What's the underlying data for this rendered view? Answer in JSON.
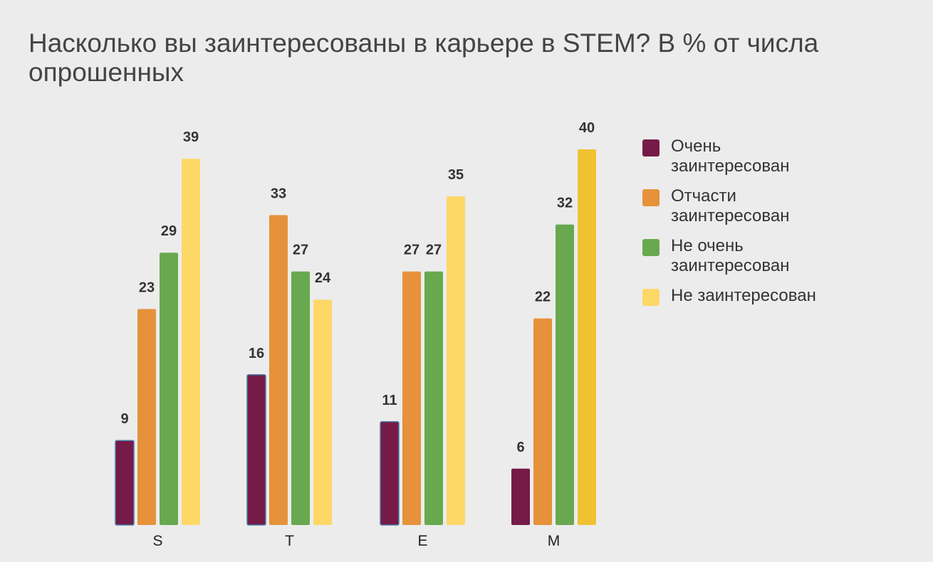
{
  "chart_data": {
    "type": "bar",
    "title": "Насколько вы заинтересованы в карьере в STEM? В % от числа опрошенных",
    "categories": [
      "S",
      "T",
      "E",
      "M"
    ],
    "ylim": [
      0,
      40
    ],
    "grid": false,
    "legend_position": "right",
    "series": [
      {
        "name": "Очень заинтересован",
        "color": "#761a48",
        "values": [
          9,
          16,
          11,
          6
        ]
      },
      {
        "name": "Отчасти заинтересован",
        "color": "#e5923a",
        "values": [
          23,
          33,
          27,
          22
        ]
      },
      {
        "name": "Не очень заинтересован",
        "color": "#68a84f",
        "values": [
          29,
          27,
          27,
          32
        ]
      },
      {
        "name": "Не заинтересован",
        "color": "#fdd867",
        "values": [
          39,
          24,
          35,
          40
        ]
      }
    ],
    "highlight_color": "#f0c232"
  }
}
